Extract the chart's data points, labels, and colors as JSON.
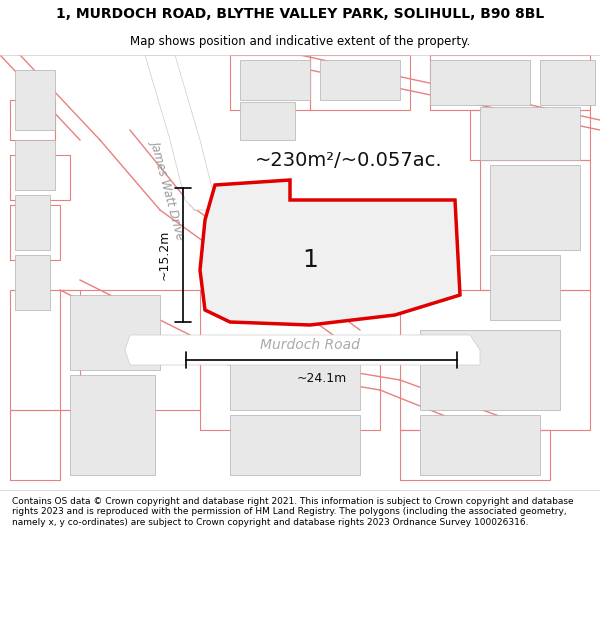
{
  "title_line1": "1, MURDOCH ROAD, BLYTHE VALLEY PARK, SOLIHULL, B90 8BL",
  "title_line2": "Map shows position and indicative extent of the property.",
  "footer_text": "Contains OS data © Crown copyright and database right 2021. This information is subject to Crown copyright and database rights 2023 and is reproduced with the permission of HM Land Registry. The polygons (including the associated geometry, namely x, y co-ordinates) are subject to Crown copyright and database rights 2023 Ordnance Survey 100026316.",
  "area_label": "~230m²/~0.057ac.",
  "plot_number": "1",
  "dim_width": "~24.1m",
  "dim_height": "~15.2m",
  "road_label": "Murdoch Road",
  "street_label": "James Watt Drive",
  "bg_color": "#ffffff",
  "map_bg": "#f5f5f5",
  "road_color": "#ffffff",
  "building_fill": "#e8e8e8",
  "building_stroke": "#cccccc",
  "red_polygon_color": "#e00000",
  "red_line_color": "#e88080",
  "plot_fill": "#f0f0f0"
}
